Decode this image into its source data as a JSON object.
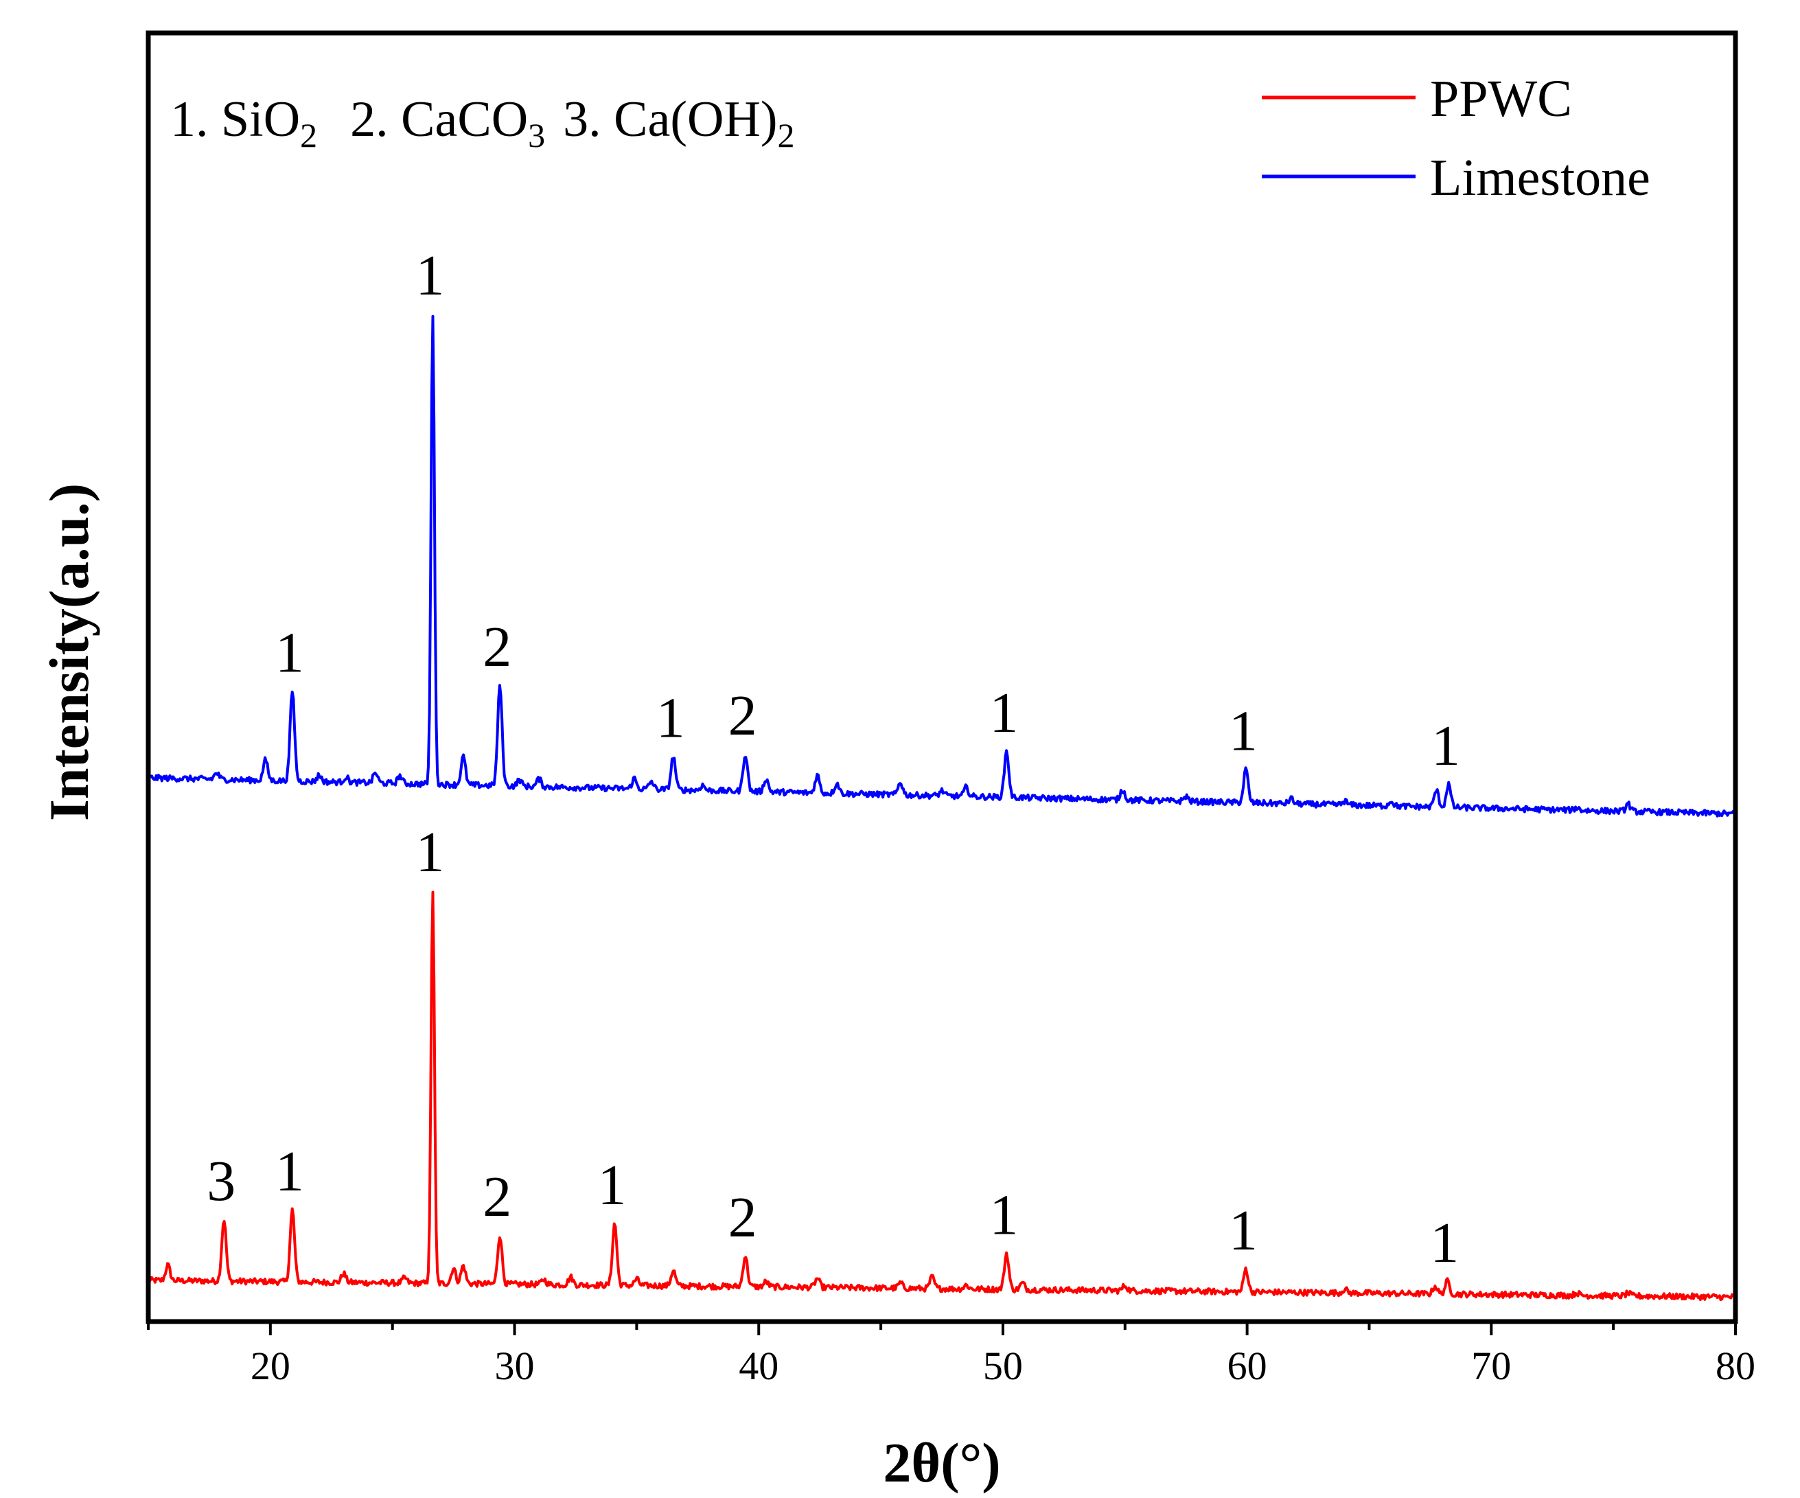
{
  "chart_data": {
    "type": "line",
    "title": "",
    "xlabel": "2θ(°)",
    "ylabel": "Intensity(a.u.)",
    "xlim": [
      15,
      80
    ],
    "xticks": [
      20,
      30,
      40,
      50,
      60,
      70,
      80
    ],
    "xtick_labels": [
      "20",
      "30",
      "40",
      "50",
      "60",
      "70",
      "80"
    ],
    "yticks": [],
    "grid": false,
    "legend_position": "top-right",
    "annotation": {
      "items": [
        {
          "prefix": "1. SiO",
          "sub": "2"
        },
        {
          "prefix": "2. CaCO",
          "sub": "3"
        },
        {
          "prefix": "3. Ca(OH)",
          "sub": "2"
        }
      ]
    },
    "series": [
      {
        "name": "PPWC",
        "color": "#ff0000",
        "baseline_start": 17.2,
        "baseline_end": 15.9,
        "peaks": [
          {
            "x": 15.8,
            "h": 1.2
          },
          {
            "x": 18.1,
            "h": 4.8,
            "label": "3"
          },
          {
            "x": 20.9,
            "h": 5.6,
            "label": "1"
          },
          {
            "x": 23.0,
            "h": 0.7
          },
          {
            "x": 25.5,
            "h": 0.4
          },
          {
            "x": 26.65,
            "h": 30.5,
            "label": "1"
          },
          {
            "x": 27.5,
            "h": 1.2
          },
          {
            "x": 27.9,
            "h": 1.4
          },
          {
            "x": 29.4,
            "h": 3.8,
            "label": "2"
          },
          {
            "x": 31.2,
            "h": 0.4
          },
          {
            "x": 32.3,
            "h": 0.6
          },
          {
            "x": 34.1,
            "h": 4.8,
            "label": "1"
          },
          {
            "x": 35.0,
            "h": 0.5
          },
          {
            "x": 36.5,
            "h": 1.2
          },
          {
            "x": 39.45,
            "h": 2.4,
            "label": "2"
          },
          {
            "x": 40.3,
            "h": 0.4
          },
          {
            "x": 42.4,
            "h": 0.7
          },
          {
            "x": 45.8,
            "h": 0.4
          },
          {
            "x": 47.1,
            "h": 0.9
          },
          {
            "x": 48.5,
            "h": 0.3
          },
          {
            "x": 50.15,
            "h": 2.8,
            "label": "1"
          },
          {
            "x": 50.8,
            "h": 0.5
          },
          {
            "x": 55.0,
            "h": 0.4
          },
          {
            "x": 59.95,
            "h": 1.8,
            "label": "1"
          },
          {
            "x": 64.0,
            "h": 0.3
          },
          {
            "x": 67.7,
            "h": 0.6
          },
          {
            "x": 68.2,
            "h": 1.0,
            "label": "1"
          },
          {
            "x": 73.5,
            "h": 0.2
          },
          {
            "x": 75.6,
            "h": 0.2
          }
        ]
      },
      {
        "name": "Limestone",
        "color": "#0000ff",
        "baseline_start": 56.2,
        "baseline_end": 53.4,
        "peaks": [
          {
            "x": 17.8,
            "h": 0.5
          },
          {
            "x": 19.8,
            "h": 1.6
          },
          {
            "x": 20.9,
            "h": 7.0,
            "label": "1"
          },
          {
            "x": 22.0,
            "h": 0.5
          },
          {
            "x": 23.1,
            "h": 0.4
          },
          {
            "x": 24.3,
            "h": 0.8
          },
          {
            "x": 25.3,
            "h": 0.6
          },
          {
            "x": 26.65,
            "h": 36.5,
            "label": "1"
          },
          {
            "x": 27.9,
            "h": 2.2
          },
          {
            "x": 29.4,
            "h": 7.8,
            "label": "2"
          },
          {
            "x": 30.2,
            "h": 0.5
          },
          {
            "x": 31.0,
            "h": 0.6
          },
          {
            "x": 34.9,
            "h": 0.8
          },
          {
            "x": 35.6,
            "h": 0.6
          },
          {
            "x": 36.5,
            "h": 2.6,
            "label": "1"
          },
          {
            "x": 37.7,
            "h": 0.4
          },
          {
            "x": 39.45,
            "h": 2.9,
            "label": "2"
          },
          {
            "x": 40.3,
            "h": 1.0
          },
          {
            "x": 42.4,
            "h": 1.4
          },
          {
            "x": 43.2,
            "h": 0.8
          },
          {
            "x": 45.8,
            "h": 1.0
          },
          {
            "x": 47.5,
            "h": 0.4
          },
          {
            "x": 48.5,
            "h": 0.7
          },
          {
            "x": 50.15,
            "h": 3.6,
            "label": "1"
          },
          {
            "x": 54.9,
            "h": 0.8
          },
          {
            "x": 57.5,
            "h": 0.4
          },
          {
            "x": 59.95,
            "h": 2.6,
            "label": "1"
          },
          {
            "x": 61.8,
            "h": 0.4
          },
          {
            "x": 64.0,
            "h": 0.3
          },
          {
            "x": 65.9,
            "h": 0.4
          },
          {
            "x": 67.75,
            "h": 1.3
          },
          {
            "x": 68.25,
            "h": 1.8,
            "label": "1"
          },
          {
            "x": 73.5,
            "h": 0.2
          },
          {
            "x": 75.6,
            "h": 0.6
          }
        ]
      }
    ],
    "ylim": [
      14,
      114
    ]
  }
}
